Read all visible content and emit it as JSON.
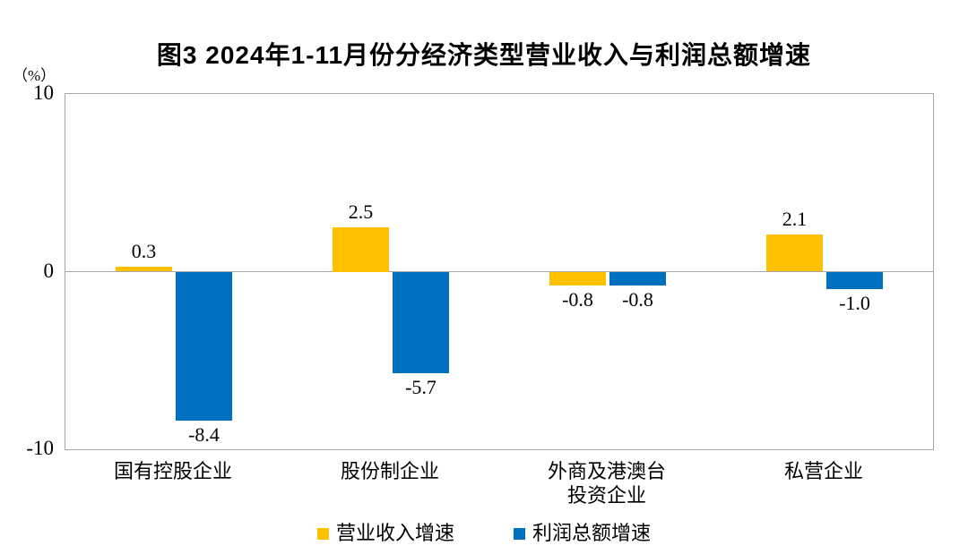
{
  "chart_data": {
    "type": "bar",
    "title": "图3 2024年1-11月份分经济类型营业收入与利润总额增速",
    "y_unit": "（%）",
    "categories": [
      "国有控股企业",
      "股份制企业",
      "外商及港澳台\n投资企业",
      "私营企业"
    ],
    "series": [
      {
        "name": "营业收入增速",
        "color": "#FFC000",
        "values": [
          0.3,
          2.5,
          -0.8,
          2.1
        ]
      },
      {
        "name": "利润总额增速",
        "color": "#0070C0",
        "values": [
          -8.4,
          -5.7,
          -0.8,
          -1.0
        ]
      }
    ],
    "value_labels": {
      "营业收入增速": [
        "0.3",
        "2.5",
        "-0.8",
        "2.1"
      ],
      "利润总额增速": [
        "-8.4",
        "-5.7",
        "-0.8",
        "-1.0"
      ]
    },
    "ylim": [
      -10,
      10
    ],
    "yticks": [
      10,
      0,
      -10
    ],
    "grid": false,
    "legend_position": "bottom",
    "colors": {
      "axis_gray": "#a6a6a6",
      "text": "#000000"
    }
  }
}
